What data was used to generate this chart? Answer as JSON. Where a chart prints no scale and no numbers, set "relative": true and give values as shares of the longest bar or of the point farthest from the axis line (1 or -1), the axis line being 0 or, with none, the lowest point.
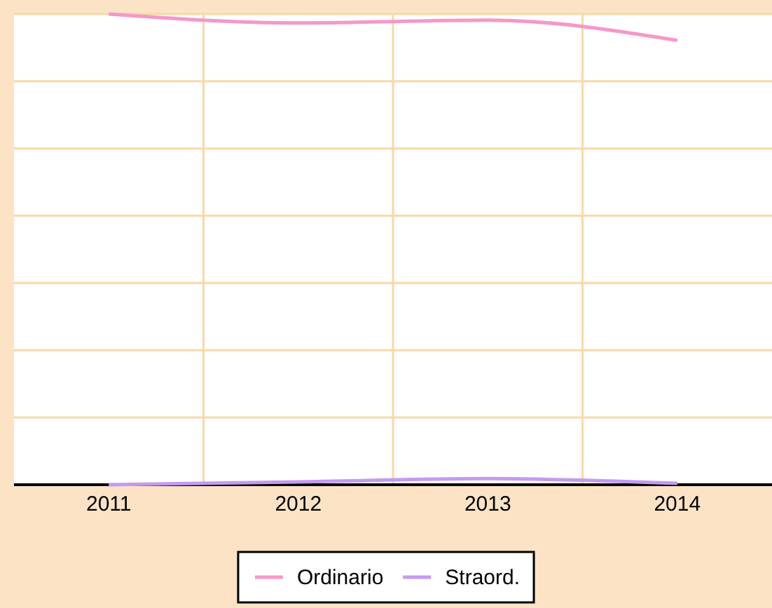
{
  "chart_data": {
    "type": "line",
    "relative": true,
    "categories": [
      "2011",
      "2012",
      "2013",
      "2014"
    ],
    "series": [
      {
        "name": "Ordinario",
        "color": "#f598c8",
        "values": [
          1,
          0.981,
          0.987,
          0.944
        ]
      },
      {
        "name": "Straord.",
        "color": "#c49af0",
        "values": [
          0,
          0.006,
          0.013,
          0.003
        ]
      }
    ],
    "grid": true,
    "legend": "bottom",
    "marker": "none",
    "line_style": "solid"
  }
}
